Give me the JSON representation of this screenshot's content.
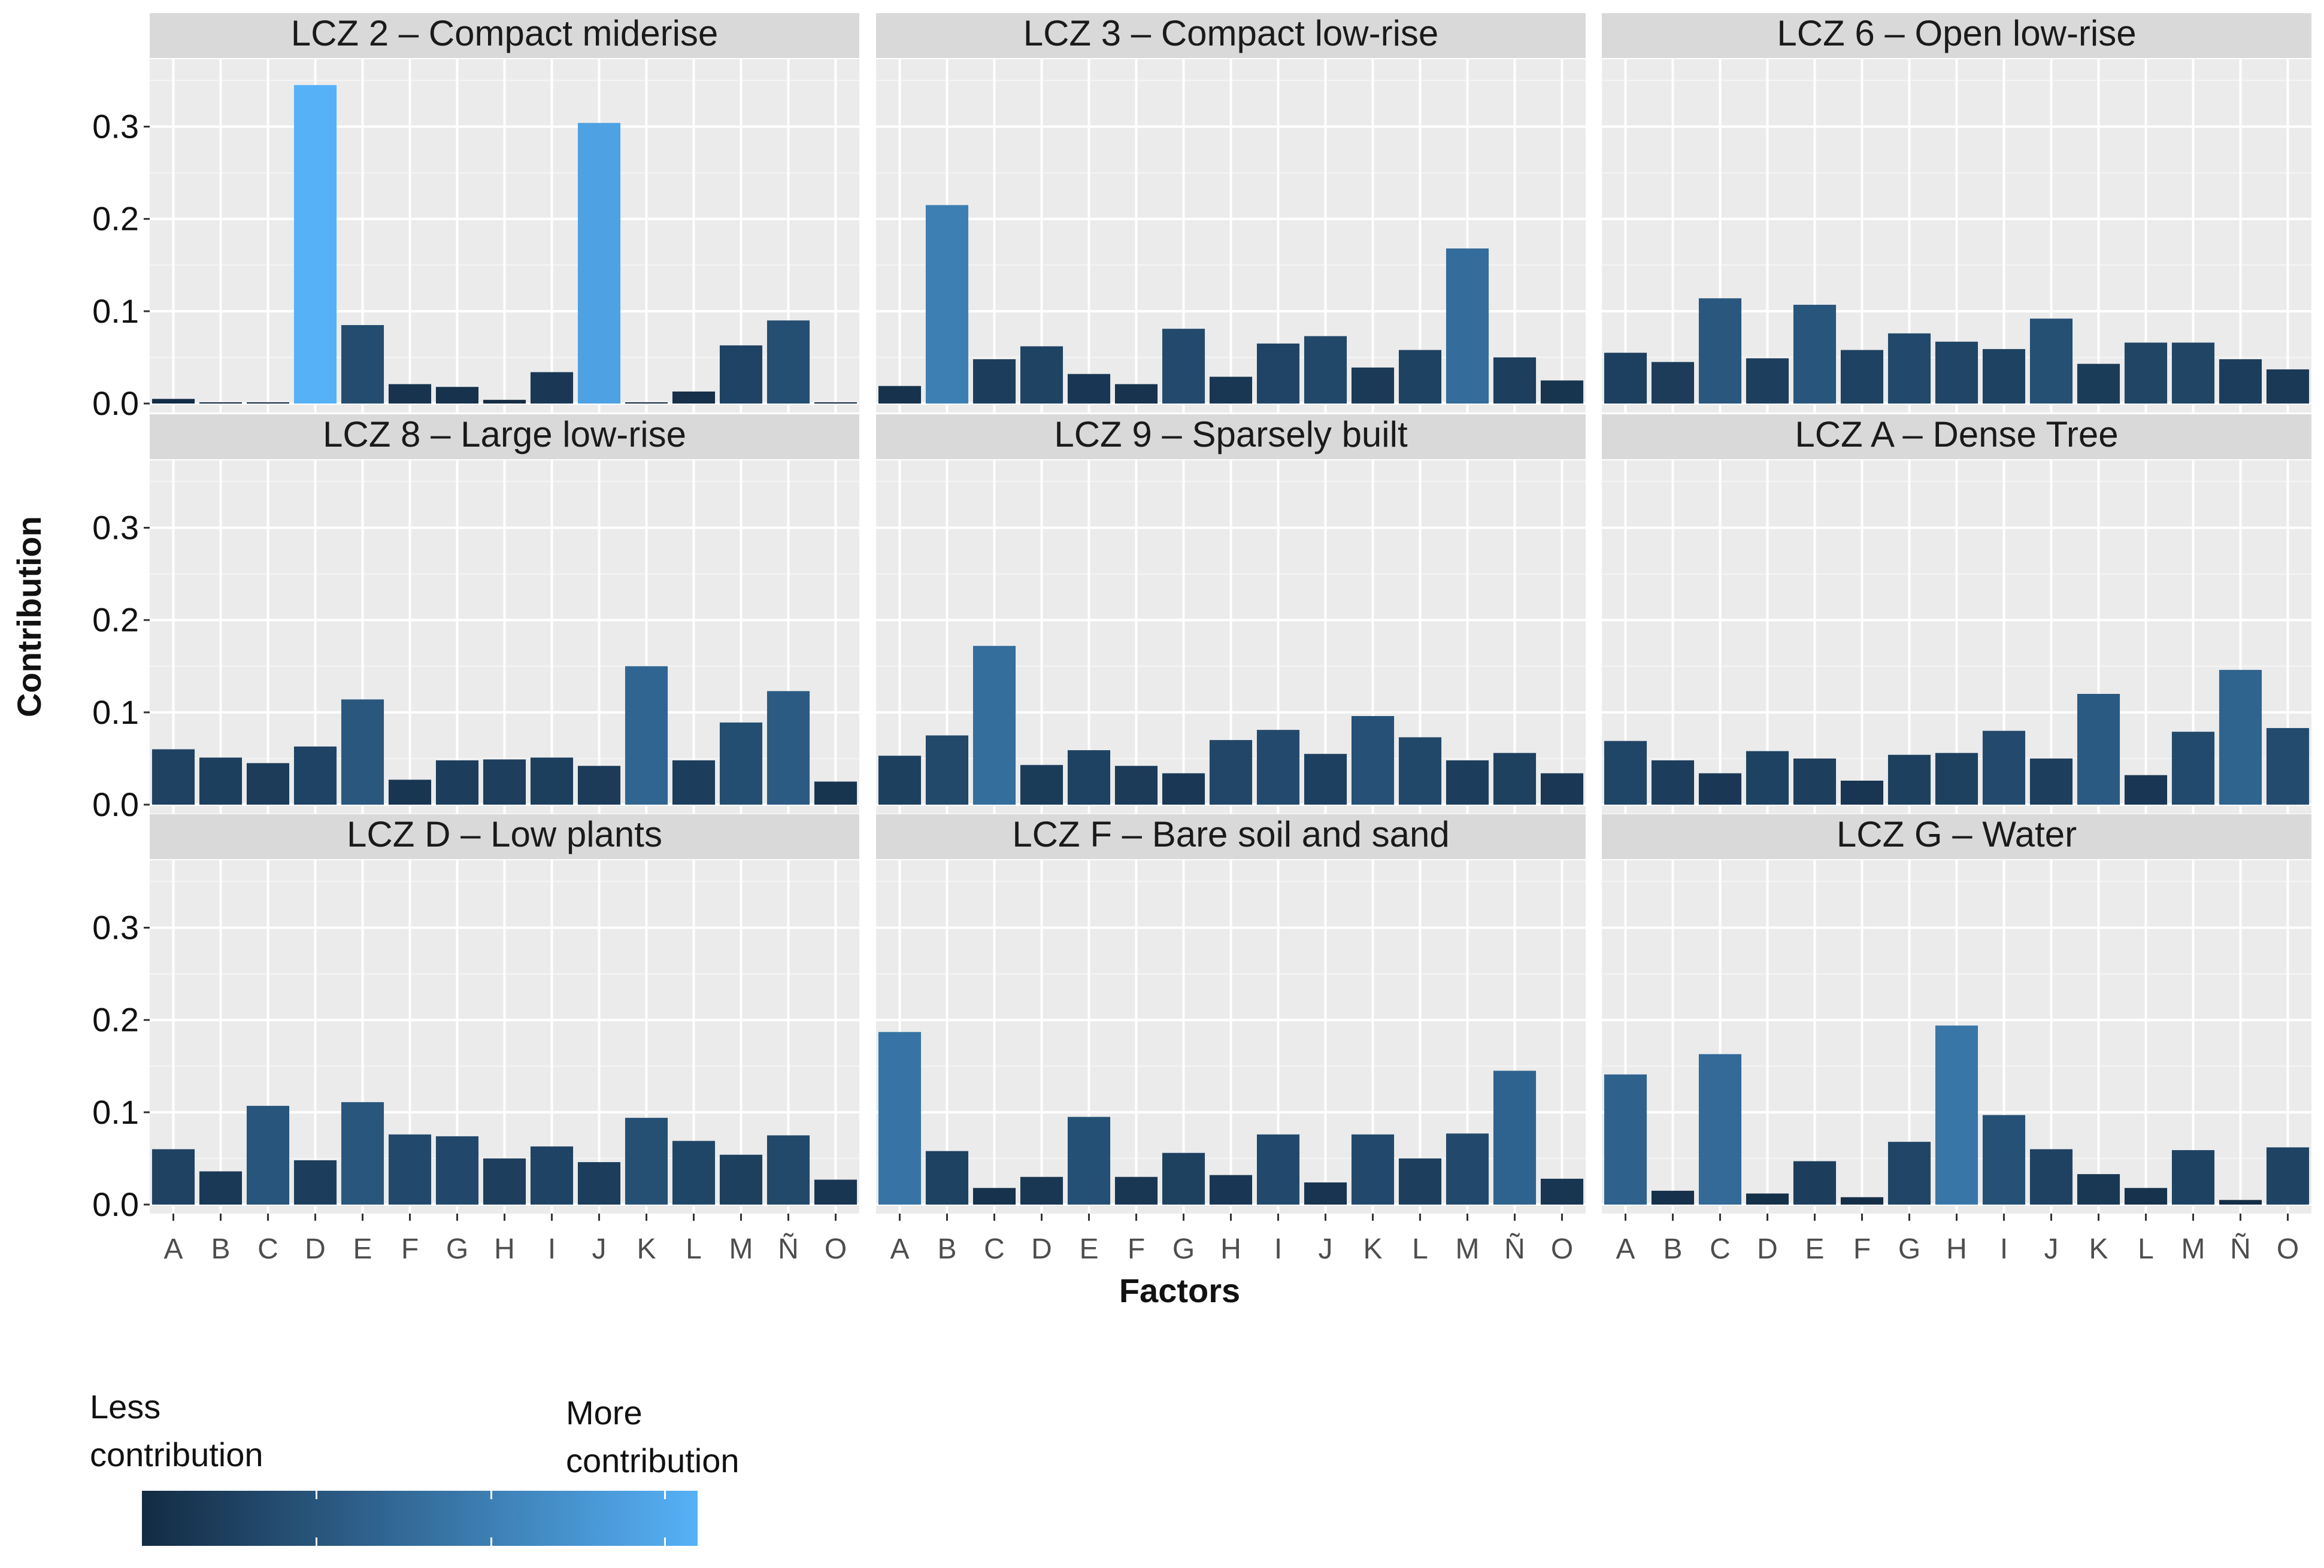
{
  "chart_data": {
    "type": "bar",
    "facet_layout": "3x3",
    "ylabel": "Contribution",
    "xlabel": "Factors",
    "ylim": [
      0,
      0.36
    ],
    "yticks": [
      "0.0",
      "0.1",
      "0.2",
      "0.3"
    ],
    "grid": true,
    "categories": [
      "A",
      "B",
      "C",
      "D",
      "E",
      "F",
      "G",
      "H",
      "I",
      "J",
      "K",
      "L",
      "M",
      "Ñ",
      "O"
    ],
    "color_scale": {
      "low": "#132b43",
      "high": "#56b1f7",
      "min": 0.0,
      "max": 0.345
    },
    "panels": [
      {
        "title": "LCZ 2 – Compact miderise",
        "values": [
          0.005,
          0.001,
          0.001,
          0.345,
          0.085,
          0.021,
          0.018,
          0.004,
          0.034,
          0.304,
          0.001,
          0.013,
          0.063,
          0.09,
          0.001
        ]
      },
      {
        "title": "LCZ 3  –  Compact low-rise",
        "values": [
          0.019,
          0.215,
          0.048,
          0.062,
          0.032,
          0.021,
          0.081,
          0.029,
          0.065,
          0.073,
          0.039,
          0.058,
          0.168,
          0.05,
          0.025
        ]
      },
      {
        "title": "LCZ 6 – Open low-rise",
        "values": [
          0.055,
          0.045,
          0.114,
          0.049,
          0.107,
          0.058,
          0.076,
          0.067,
          0.059,
          0.092,
          0.043,
          0.066,
          0.066,
          0.048,
          0.037
        ]
      },
      {
        "title": "LCZ 8 – Large low-rise",
        "values": [
          0.06,
          0.051,
          0.045,
          0.063,
          0.114,
          0.027,
          0.048,
          0.049,
          0.051,
          0.042,
          0.15,
          0.048,
          0.089,
          0.123,
          0.025
        ]
      },
      {
        "title": "LCZ 9 – Sparsely built",
        "values": [
          0.053,
          0.075,
          0.172,
          0.043,
          0.059,
          0.042,
          0.034,
          0.07,
          0.081,
          0.055,
          0.096,
          0.073,
          0.048,
          0.056,
          0.034
        ]
      },
      {
        "title": "LCZ A – Dense Tree",
        "values": [
          0.069,
          0.048,
          0.034,
          0.058,
          0.05,
          0.026,
          0.054,
          0.056,
          0.08,
          0.05,
          0.12,
          0.032,
          0.079,
          0.146,
          0.083
        ]
      },
      {
        "title": "LCZ D – Low plants",
        "values": [
          0.06,
          0.036,
          0.107,
          0.048,
          0.111,
          0.076,
          0.074,
          0.05,
          0.063,
          0.046,
          0.094,
          0.069,
          0.054,
          0.075,
          0.027
        ]
      },
      {
        "title": "LCZ F – Bare soil and sand",
        "values": [
          0.187,
          0.058,
          0.018,
          0.03,
          0.095,
          0.03,
          0.056,
          0.032,
          0.076,
          0.024,
          0.076,
          0.05,
          0.077,
          0.145,
          0.028
        ]
      },
      {
        "title": "LCZ G – Water",
        "values": [
          0.141,
          0.015,
          0.163,
          0.012,
          0.047,
          0.008,
          0.068,
          0.194,
          0.097,
          0.06,
          0.033,
          0.018,
          0.059,
          0.005,
          0.062
        ]
      }
    ]
  },
  "legend": {
    "less_label": "Less\ncontribution",
    "more_label": "More\ncontribution"
  }
}
